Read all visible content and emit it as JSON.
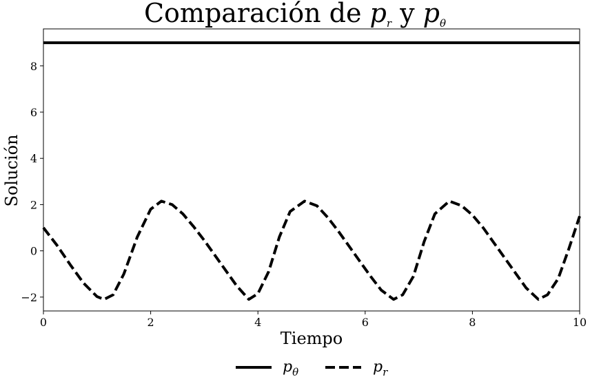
{
  "chart_data": {
    "type": "line",
    "title": {
      "prefix": "Comparación de ",
      "var1": "p",
      "var1_sub": "r",
      "middle": " y ",
      "var2": "p",
      "var2_sub": "θ"
    },
    "xlabel": "Tiempo",
    "ylabel": "Solución",
    "xlim": [
      0,
      10
    ],
    "ylim": [
      -2.6,
      9.6
    ],
    "xticks": [
      0,
      2,
      4,
      6,
      8,
      10
    ],
    "yticks": [
      -2,
      0,
      2,
      4,
      6,
      8
    ],
    "xtick_labels": [
      "0",
      "2",
      "4",
      "6",
      "8",
      "10"
    ],
    "ytick_labels": [
      "−2",
      "0",
      "2",
      "4",
      "6",
      "8"
    ],
    "grid": false,
    "legend_position": "bottom-center",
    "series": [
      {
        "name": "p",
        "name_sub": "θ",
        "style": "solid",
        "color": "#000000",
        "x": [
          0,
          10
        ],
        "y": [
          9,
          9
        ]
      },
      {
        "name": "p",
        "name_sub": "r",
        "style": "dashed",
        "color": "#000000",
        "x": [
          0,
          0.25,
          0.5,
          0.75,
          1.0,
          1.13,
          1.3,
          1.5,
          1.75,
          2.0,
          2.2,
          2.4,
          2.6,
          2.8,
          3.0,
          3.2,
          3.4,
          3.6,
          3.83,
          4.0,
          4.2,
          4.4,
          4.6,
          4.87,
          5.1,
          5.3,
          5.5,
          5.7,
          5.9,
          6.1,
          6.3,
          6.53,
          6.7,
          6.9,
          7.1,
          7.3,
          7.57,
          7.8,
          8.0,
          8.2,
          8.4,
          8.6,
          8.8,
          9.0,
          9.23,
          9.4,
          9.6,
          9.8,
          10.0
        ],
        "y": [
          1.0,
          0.25,
          -0.6,
          -1.4,
          -1.98,
          -2.1,
          -1.9,
          -1.0,
          0.6,
          1.8,
          2.15,
          2.0,
          1.6,
          1.05,
          0.45,
          -0.2,
          -0.85,
          -1.5,
          -2.1,
          -1.85,
          -0.9,
          0.6,
          1.7,
          2.15,
          1.95,
          1.45,
          0.85,
          0.2,
          -0.45,
          -1.1,
          -1.7,
          -2.1,
          -1.9,
          -1.1,
          0.4,
          1.6,
          2.15,
          1.95,
          1.55,
          1.0,
          0.35,
          -0.3,
          -0.95,
          -1.6,
          -2.1,
          -1.9,
          -1.2,
          0.1,
          1.5
        ]
      }
    ]
  }
}
